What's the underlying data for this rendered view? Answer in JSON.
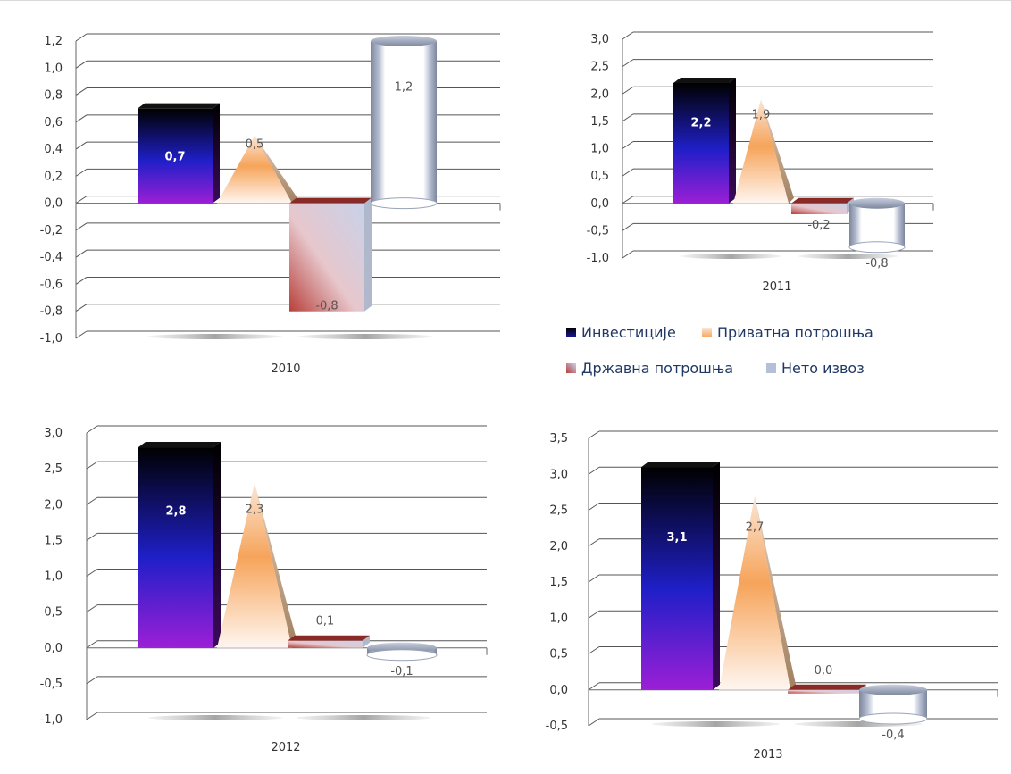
{
  "chart_data": [
    {
      "type": "bar",
      "title": "2010",
      "categories": [
        "Инвестиције",
        "Приватна потрошња",
        "Државна потрошња",
        "Нето извоз"
      ],
      "values": [
        0.7,
        0.5,
        -0.8,
        1.2
      ],
      "value_labels": [
        "0,7",
        "0,5",
        "-0,8",
        "1,2"
      ],
      "ylim": [
        -1.0,
        1.2
      ],
      "ticks": [
        "-1,0",
        "-0,8",
        "-0,6",
        "-0,4",
        "-0,2",
        "0,0",
        "0,2",
        "0,4",
        "0,6",
        "0,8",
        "1,0",
        "1,2"
      ],
      "grid": true
    },
    {
      "type": "bar",
      "title": "2011",
      "categories": [
        "Инвестиције",
        "Приватна потрошња",
        "Државна потрошња",
        "Нето извоз"
      ],
      "values": [
        2.2,
        1.9,
        -0.2,
        -0.8
      ],
      "value_labels": [
        "2,2",
        "1,9",
        "-0,2",
        "-0,8"
      ],
      "ylim": [
        -1.0,
        3.0
      ],
      "ticks": [
        "-1,0",
        "-0,5",
        "0,0",
        "0,5",
        "1,0",
        "1,5",
        "2,0",
        "2,5",
        "3,0"
      ],
      "grid": true
    },
    {
      "type": "bar",
      "title": "2012",
      "categories": [
        "Инвестиције",
        "Приватна потрошња",
        "Државна потрошња",
        "Нето извоз"
      ],
      "values": [
        2.8,
        2.3,
        0.1,
        -0.1
      ],
      "value_labels": [
        "2,8",
        "2,3",
        "0,1",
        "-0,1"
      ],
      "ylim": [
        -1.0,
        3.0
      ],
      "ticks": [
        "-1,0",
        "-0,5",
        "0,0",
        "0,5",
        "1,0",
        "1,5",
        "2,0",
        "2,5",
        "3,0"
      ],
      "grid": true
    },
    {
      "type": "bar",
      "title": "2013",
      "categories": [
        "Инвестиције",
        "Приватна потрошња",
        "Државна потрошња",
        "Нето извоз"
      ],
      "values": [
        3.1,
        2.7,
        0.0,
        -0.4
      ],
      "value_labels": [
        "3,1",
        "2,7",
        "0,0",
        "-0,4"
      ],
      "ylim": [
        -0.5,
        3.5
      ],
      "ticks": [
        "-0,5",
        "0,0",
        "0,5",
        "1,0",
        "1,5",
        "2,0",
        "2,5",
        "3,0",
        "3,5"
      ],
      "grid": true
    }
  ],
  "legend": {
    "placement": "between right panels",
    "items": [
      {
        "label": "Инвестиције",
        "color": "#1a1aa0"
      },
      {
        "label": "Приватна потрошња",
        "color": "#f6a45a"
      },
      {
        "label": "Државна потрошња",
        "color": "#c0504d"
      },
      {
        "label": "Нето извоз",
        "color": "#b4bfd8"
      }
    ]
  }
}
